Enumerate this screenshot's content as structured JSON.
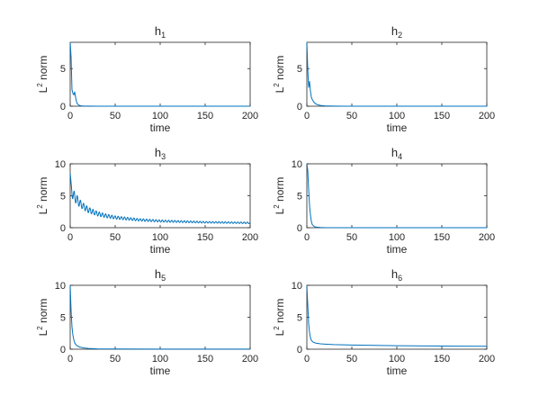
{
  "figure": {
    "background": "#ffffff",
    "axis_color": "#262626",
    "line_color": "#0072bd"
  },
  "chart_data": [
    {
      "type": "line",
      "title_base": "h",
      "title_sub": "1",
      "xlabel": "time",
      "ylabel_base": "L",
      "ylabel_sup": "2",
      "ylabel_rest": " norm",
      "xlim": [
        0,
        200
      ],
      "ylim": [
        0,
        8.5
      ],
      "xticks": [
        0,
        50,
        100,
        150,
        200
      ],
      "yticks": [
        0,
        5
      ],
      "x": [
        0,
        1,
        2,
        3,
        4,
        5,
        6,
        7,
        8,
        10,
        12,
        15,
        20,
        30,
        50,
        100,
        150,
        200
      ],
      "y": [
        8.5,
        6.5,
        2.2,
        1.7,
        1.5,
        1.9,
        1.2,
        0.6,
        0.3,
        0.12,
        0.05,
        0.02,
        0.01,
        0,
        0,
        0,
        0,
        0
      ]
    },
    {
      "type": "line",
      "title_base": "h",
      "title_sub": "2",
      "xlabel": "time",
      "ylabel_base": "L",
      "ylabel_sup": "2",
      "ylabel_rest": " norm",
      "xlim": [
        0,
        200
      ],
      "ylim": [
        0,
        8.5
      ],
      "xticks": [
        0,
        50,
        100,
        150,
        200
      ],
      "yticks": [
        0,
        5
      ],
      "x": [
        0,
        1,
        2,
        3,
        4,
        5,
        6,
        7,
        8,
        10,
        12,
        15,
        20,
        30,
        50,
        100,
        150,
        200
      ],
      "y": [
        8.5,
        5.0,
        2.5,
        3.3,
        2.0,
        1.2,
        0.9,
        0.7,
        0.5,
        0.3,
        0.2,
        0.1,
        0.04,
        0.01,
        0,
        0,
        0,
        0
      ]
    },
    {
      "type": "line",
      "title_base": "h",
      "title_sub": "3",
      "xlabel": "time",
      "ylabel_base": "L",
      "ylabel_sup": "2",
      "ylabel_rest": " norm",
      "xlim": [
        0,
        200
      ],
      "ylim": [
        0,
        10
      ],
      "xticks": [
        0,
        50,
        100,
        150,
        200
      ],
      "yticks": [
        0,
        5,
        10
      ],
      "oscillation_period": 3.5,
      "x": [
        0,
        1,
        2,
        3,
        5,
        8,
        10,
        15,
        20,
        30,
        40,
        50,
        75,
        100,
        125,
        150,
        175,
        200
      ],
      "y": [
        8.5,
        6.5,
        5.5,
        5.2,
        4.8,
        4.3,
        3.9,
        3.3,
        2.8,
        2.2,
        1.85,
        1.6,
        1.25,
        1.05,
        0.95,
        0.85,
        0.8,
        0.75
      ],
      "amplitude": [
        0.3,
        0.5,
        0.7,
        0.8,
        0.8,
        0.7,
        0.6,
        0.5,
        0.45,
        0.35,
        0.3,
        0.25,
        0.2,
        0.17,
        0.15,
        0.13,
        0.12,
        0.12
      ]
    },
    {
      "type": "line",
      "title_base": "h",
      "title_sub": "4",
      "xlabel": "time",
      "ylabel_base": "L",
      "ylabel_sup": "2",
      "ylabel_rest": " norm",
      "xlim": [
        0,
        200
      ],
      "ylim": [
        0,
        10
      ],
      "xticks": [
        0,
        50,
        100,
        150,
        200
      ],
      "yticks": [
        0,
        5,
        10
      ],
      "x": [
        0,
        1,
        2,
        3,
        4,
        5,
        6,
        8,
        10,
        15,
        20,
        50,
        100,
        150,
        200
      ],
      "y": [
        10,
        9.0,
        6.0,
        3.5,
        2.0,
        1.0,
        0.5,
        0.2,
        0.1,
        0.03,
        0.01,
        0,
        0,
        0,
        0
      ]
    },
    {
      "type": "line",
      "title_base": "h",
      "title_sub": "5",
      "xlabel": "time",
      "ylabel_base": "L",
      "ylabel_sup": "2",
      "ylabel_rest": " norm",
      "xlim": [
        0,
        200
      ],
      "ylim": [
        0,
        10
      ],
      "xticks": [
        0,
        50,
        100,
        150,
        200
      ],
      "yticks": [
        0,
        5,
        10
      ],
      "x": [
        0,
        1,
        2,
        3,
        4,
        5,
        7,
        10,
        15,
        20,
        30,
        50,
        100,
        150,
        200
      ],
      "y": [
        10,
        6.0,
        3.5,
        2.2,
        1.5,
        1.0,
        0.6,
        0.35,
        0.2,
        0.12,
        0.06,
        0.03,
        0.02,
        0.02,
        0.02
      ]
    },
    {
      "type": "line",
      "title_base": "h",
      "title_sub": "6",
      "xlabel": "time",
      "ylabel_base": "L",
      "ylabel_sup": "2",
      "ylabel_rest": " norm",
      "xlim": [
        0,
        200
      ],
      "ylim": [
        0,
        10
      ],
      "xticks": [
        0,
        50,
        100,
        150,
        200
      ],
      "yticks": [
        0,
        5,
        10
      ],
      "x": [
        0,
        1,
        2,
        3,
        4,
        5,
        7,
        10,
        15,
        20,
        30,
        50,
        75,
        100,
        150,
        200
      ],
      "y": [
        10,
        7.0,
        4.0,
        2.6,
        1.8,
        1.4,
        1.1,
        0.95,
        0.85,
        0.8,
        0.72,
        0.65,
        0.6,
        0.55,
        0.5,
        0.45
      ]
    }
  ]
}
